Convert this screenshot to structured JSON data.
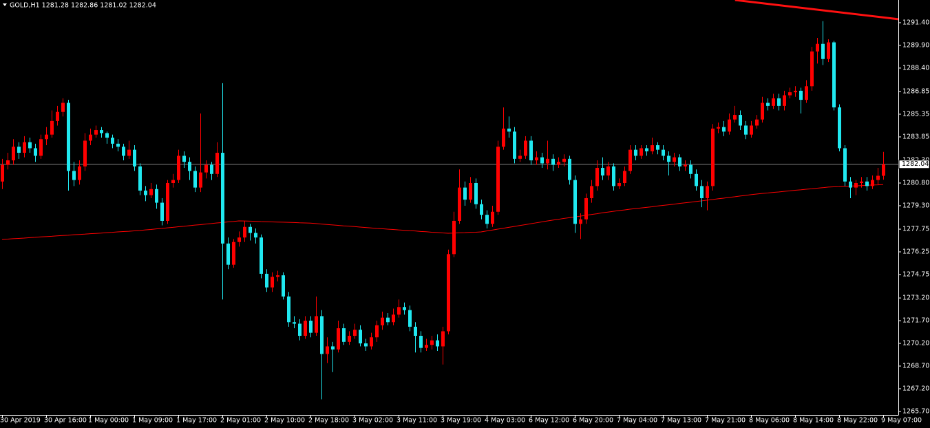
{
  "chart_data": {
    "type": "candlestick",
    "title": "GOLD,H1  1281.28 1282.86 1281.02 1282.04",
    "categories": [
      "30 Apr 2019",
      null,
      null,
      null,
      null,
      null,
      null,
      null,
      "30 Apr 16:00",
      null,
      null,
      null,
      null,
      null,
      null,
      null,
      "1 May 00:00",
      null,
      null,
      null,
      null,
      null,
      null,
      null,
      "1 May 09:00",
      null,
      null,
      null,
      null,
      null,
      null,
      null,
      "1 May 17:00",
      null,
      null,
      null,
      null,
      null,
      null,
      null,
      "2 May 01:00",
      null,
      null,
      null,
      null,
      null,
      null,
      null,
      "2 May 10:00",
      null,
      null,
      null,
      null,
      null,
      null,
      null,
      "2 May 18:00",
      null,
      null,
      null,
      null,
      null,
      null,
      null,
      "3 May 02:00",
      null,
      null,
      null,
      null,
      null,
      null,
      null,
      "3 May 11:00",
      null,
      null,
      null,
      null,
      null,
      null,
      null,
      "3 May 19:00",
      null,
      null,
      null,
      null,
      null,
      null,
      null,
      "4 May 03:00",
      null,
      null,
      null,
      null,
      null,
      null,
      null,
      "6 May 12:00",
      null,
      null,
      null,
      null,
      null,
      null,
      null,
      "6 May 20:00",
      null,
      null,
      null,
      null,
      null,
      null,
      null,
      "7 May 04:00",
      null,
      null,
      null,
      null,
      null,
      null,
      null,
      "7 May 13:00",
      null,
      null,
      null,
      null,
      null,
      null,
      null,
      "7 May 21:00",
      null,
      null,
      null,
      null,
      null,
      null,
      null,
      "8 May 06:00",
      null,
      null,
      null,
      null,
      null,
      null,
      null,
      "8 May 14:00",
      null,
      null,
      null,
      null,
      null,
      null,
      null,
      "8 May 22:00",
      null,
      null,
      null,
      null,
      null,
      null,
      null,
      "9 May 07:00"
    ],
    "open": [
      1280.9,
      1282.0,
      1282.3,
      1283.2,
      1282.8,
      1283.5,
      1283.1,
      1282.6,
      1283.7,
      1284.0,
      1284.9,
      1285.5,
      1286.1,
      1281.6,
      1281.0,
      1281.9,
      1283.6,
      1284.0,
      1284.3,
      1284.1,
      1283.8,
      1283.4,
      1283.2,
      1282.6,
      1283.0,
      1281.9,
      1280.3,
      1280.0,
      1280.4,
      1279.5,
      1278.3,
      1280.8,
      1281.0,
      1282.6,
      1282.2,
      1281.6,
      1280.5,
      1281.5,
      1282.0,
      1281.4,
      1282.8,
      1276.8,
      1275.4,
      1276.9,
      1277.2,
      1277.9,
      1277.5,
      1277.2,
      1274.8,
      1273.9,
      1274.6,
      1274.7,
      1273.3,
      1271.6,
      1271.5,
      1270.7,
      1271.7,
      1270.9,
      1272.0,
      1269.5,
      1270.0,
      1269.8,
      1271.2,
      1270.3,
      1270.7,
      1271.1,
      1270.2,
      1270.0,
      1270.6,
      1271.4,
      1271.9,
      1271.6,
      1272.1,
      1272.6,
      1272.4,
      1271.3,
      1270.7,
      1269.9,
      1270.1,
      1270.4,
      1270.0,
      1271.0,
      1276.1,
      1278.3,
      1280.5,
      1279.7,
      1280.8,
      1279.4,
      1278.7,
      1278.1,
      1278.9,
      1283.2,
      1284.4,
      1284.2,
      1282.4,
      1282.6,
      1283.6,
      1282.3,
      1282.5,
      1282.1,
      1282.4,
      1282.0,
      1282.2,
      1282.4,
      1281.0,
      1278.1,
      1278.4,
      1279.8,
      1280.6,
      1281.8,
      1281.3,
      1281.9,
      1280.6,
      1280.8,
      1281.6,
      1283.0,
      1282.6,
      1283.1,
      1282.9,
      1283.3,
      1283.0,
      1282.6,
      1282.2,
      1282.5,
      1281.9,
      1282.0,
      1281.4,
      1280.6,
      1279.8,
      1280.6,
      1284.4,
      1284.5,
      1284.2,
      1285.0,
      1285.3,
      1284.6,
      1284.0,
      1284.6,
      1285.0,
      1286.1,
      1285.9,
      1286.4,
      1285.9,
      1286.6,
      1286.8,
      1286.9,
      1286.3,
      1287.2,
      1289.5,
      1290.0,
      1289.0,
      1290.1,
      1285.8,
      1283.1,
      1280.9,
      1280.5,
      1280.8,
      1280.9,
      1280.6,
      1281.0,
      1281.28
    ],
    "high": [
      1282.4,
      1282.8,
      1283.7,
      1283.5,
      1283.9,
      1283.8,
      1283.4,
      1284.0,
      1284.5,
      1285.6,
      1285.9,
      1286.4,
      1286.3,
      1282.2,
      1282.3,
      1284.1,
      1284.4,
      1284.6,
      1284.5,
      1284.2,
      1284.0,
      1283.7,
      1283.4,
      1283.6,
      1283.3,
      1282.1,
      1280.6,
      1280.8,
      1280.7,
      1279.8,
      1281.0,
      1281.4,
      1283.0,
      1282.9,
      1282.5,
      1281.9,
      1285.4,
      1282.3,
      1282.2,
      1283.5,
      1287.4,
      1277.2,
      1277.1,
      1277.6,
      1278.3,
      1278.1,
      1277.8,
      1277.4,
      1275.1,
      1274.9,
      1275.0,
      1274.9,
      1273.6,
      1272.0,
      1271.8,
      1272.0,
      1272.0,
      1273.3,
      1272.4,
      1270.6,
      1270.3,
      1271.7,
      1271.5,
      1271.0,
      1271.5,
      1271.4,
      1270.5,
      1270.9,
      1271.7,
      1272.3,
      1272.2,
      1272.5,
      1273.1,
      1272.9,
      1272.7,
      1271.6,
      1271.0,
      1270.5,
      1270.7,
      1270.8,
      1271.3,
      1276.4,
      1278.9,
      1281.7,
      1280.9,
      1281.2,
      1281.1,
      1279.7,
      1279.0,
      1279.3,
      1283.6,
      1285.8,
      1285.2,
      1284.5,
      1283.0,
      1283.9,
      1283.9,
      1282.9,
      1282.8,
      1283.6,
      1282.7,
      1282.5,
      1282.7,
      1282.6,
      1281.3,
      1278.8,
      1280.1,
      1281.0,
      1282.3,
      1282.5,
      1282.2,
      1282.1,
      1281.1,
      1281.9,
      1283.3,
      1283.3,
      1283.3,
      1283.3,
      1283.8,
      1283.5,
      1283.3,
      1282.9,
      1282.8,
      1282.7,
      1282.3,
      1282.3,
      1281.7,
      1281.0,
      1280.9,
      1284.7,
      1284.8,
      1284.9,
      1285.4,
      1285.9,
      1285.6,
      1284.9,
      1284.9,
      1285.3,
      1286.5,
      1286.4,
      1286.7,
      1286.7,
      1286.9,
      1287.1,
      1287.2,
      1287.1,
      1287.6,
      1289.8,
      1290.4,
      1291.5,
      1290.3,
      1290.2,
      1286.0,
      1283.3,
      1281.2,
      1281.0,
      1281.2,
      1281.2,
      1281.3,
      1281.8,
      1282.86
    ],
    "low": [
      1280.4,
      1281.7,
      1282.0,
      1282.4,
      1282.5,
      1282.8,
      1282.2,
      1282.4,
      1283.3,
      1283.8,
      1284.6,
      1285.2,
      1280.3,
      1280.6,
      1280.7,
      1281.6,
      1283.3,
      1283.8,
      1283.8,
      1283.4,
      1283.1,
      1282.9,
      1282.3,
      1282.4,
      1281.6,
      1280.0,
      1279.6,
      1279.8,
      1279.1,
      1278.0,
      1278.1,
      1280.5,
      1280.8,
      1281.8,
      1281.0,
      1280.2,
      1280.2,
      1281.1,
      1281.0,
      1281.2,
      1273.1,
      1275.1,
      1275.2,
      1276.6,
      1276.9,
      1277.0,
      1276.8,
      1274.5,
      1273.6,
      1273.6,
      1274.3,
      1273.1,
      1271.3,
      1271.2,
      1270.4,
      1270.5,
      1270.6,
      1270.7,
      1266.5,
      1268.9,
      1268.3,
      1269.6,
      1270.1,
      1270.1,
      1270.5,
      1270.0,
      1269.7,
      1269.8,
      1270.3,
      1271.1,
      1271.4,
      1271.4,
      1271.9,
      1272.1,
      1271.0,
      1269.6,
      1269.6,
      1269.7,
      1269.8,
      1269.7,
      1268.8,
      1270.8,
      1275.9,
      1278.1,
      1279.3,
      1279.5,
      1279.1,
      1278.4,
      1277.8,
      1277.9,
      1278.7,
      1283.0,
      1283.8,
      1282.1,
      1282.2,
      1282.4,
      1282.0,
      1282.0,
      1281.8,
      1281.7,
      1281.6,
      1281.8,
      1281.9,
      1280.7,
      1277.5,
      1277.1,
      1278.1,
      1279.5,
      1280.3,
      1281.0,
      1281.0,
      1280.3,
      1280.4,
      1280.6,
      1281.4,
      1282.3,
      1282.4,
      1282.6,
      1282.7,
      1282.7,
      1282.3,
      1281.3,
      1281.9,
      1281.6,
      1281.6,
      1281.1,
      1280.3,
      1279.2,
      1279.0,
      1280.3,
      1284.1,
      1283.9,
      1284.0,
      1284.8,
      1284.3,
      1283.7,
      1283.8,
      1284.4,
      1284.8,
      1285.6,
      1285.7,
      1285.6,
      1285.6,
      1286.4,
      1286.5,
      1285.4,
      1286.1,
      1286.9,
      1288.7,
      1288.6,
      1288.8,
      1285.6,
      1282.9,
      1280.6,
      1279.8,
      1280.0,
      1280.5,
      1280.3,
      1280.4,
      1280.7,
      1281.02
    ],
    "close": [
      1282.0,
      1282.3,
      1283.2,
      1282.8,
      1283.5,
      1283.1,
      1282.6,
      1283.7,
      1284.0,
      1284.9,
      1285.5,
      1286.1,
      1281.6,
      1281.0,
      1281.9,
      1283.6,
      1284.0,
      1284.3,
      1284.1,
      1283.8,
      1283.4,
      1283.2,
      1282.6,
      1283.0,
      1281.9,
      1280.3,
      1280.0,
      1280.4,
      1279.5,
      1278.3,
      1280.8,
      1281.0,
      1282.6,
      1282.2,
      1281.6,
      1280.5,
      1281.5,
      1282.0,
      1281.4,
      1282.8,
      1276.8,
      1275.4,
      1276.9,
      1277.2,
      1277.9,
      1277.5,
      1277.2,
      1274.8,
      1273.9,
      1274.6,
      1274.7,
      1273.3,
      1271.6,
      1271.5,
      1270.7,
      1271.7,
      1270.9,
      1272.0,
      1269.5,
      1270.0,
      1269.8,
      1271.2,
      1270.3,
      1270.7,
      1271.1,
      1270.2,
      1270.0,
      1270.6,
      1271.4,
      1271.9,
      1271.6,
      1272.1,
      1272.6,
      1272.4,
      1271.3,
      1270.7,
      1269.9,
      1270.1,
      1270.4,
      1270.0,
      1271.0,
      1276.1,
      1278.3,
      1280.5,
      1279.7,
      1280.8,
      1279.4,
      1278.7,
      1278.1,
      1278.9,
      1283.2,
      1284.4,
      1284.2,
      1282.4,
      1282.6,
      1283.6,
      1282.3,
      1282.5,
      1282.1,
      1282.4,
      1282.0,
      1282.2,
      1282.4,
      1281.0,
      1278.1,
      1278.4,
      1279.8,
      1280.6,
      1281.8,
      1281.3,
      1281.9,
      1280.6,
      1280.8,
      1281.6,
      1283.0,
      1282.6,
      1283.1,
      1282.9,
      1283.3,
      1283.0,
      1282.6,
      1282.2,
      1282.5,
      1281.9,
      1282.0,
      1281.4,
      1280.6,
      1279.8,
      1280.6,
      1284.4,
      1284.5,
      1284.2,
      1285.0,
      1285.3,
      1284.6,
      1284.0,
      1284.6,
      1285.0,
      1286.1,
      1285.9,
      1286.4,
      1285.9,
      1286.6,
      1286.8,
      1286.9,
      1286.3,
      1287.2,
      1289.5,
      1290.0,
      1289.0,
      1290.1,
      1285.8,
      1283.1,
      1280.9,
      1280.5,
      1280.8,
      1280.9,
      1280.6,
      1281.0,
      1281.28,
      1282.04
    ],
    "ma": [
      1277.07,
      1277.09,
      1277.12,
      1277.14,
      1277.16,
      1277.19,
      1277.21,
      1277.24,
      1277.26,
      1277.28,
      1277.31,
      1277.33,
      1277.35,
      1277.38,
      1277.4,
      1277.42,
      1277.45,
      1277.47,
      1277.49,
      1277.52,
      1277.54,
      1277.57,
      1277.59,
      1277.61,
      1277.64,
      1277.66,
      1277.7,
      1277.73,
      1277.77,
      1277.8,
      1277.84,
      1277.87,
      1277.91,
      1277.94,
      1277.98,
      1278.02,
      1278.05,
      1278.09,
      1278.12,
      1278.16,
      1278.19,
      1278.23,
      1278.26,
      1278.3,
      1278.29,
      1278.28,
      1278.27,
      1278.25,
      1278.24,
      1278.23,
      1278.22,
      1278.21,
      1278.2,
      1278.19,
      1278.17,
      1278.16,
      1278.15,
      1278.12,
      1278.09,
      1278.06,
      1278.03,
      1278.0,
      1277.97,
      1277.95,
      1277.92,
      1277.89,
      1277.86,
      1277.83,
      1277.8,
      1277.78,
      1277.75,
      1277.73,
      1277.7,
      1277.68,
      1277.65,
      1277.63,
      1277.6,
      1277.58,
      1277.55,
      1277.53,
      1277.5,
      1277.48,
      1277.49,
      1277.51,
      1277.52,
      1277.54,
      1277.55,
      1277.57,
      1277.63,
      1277.69,
      1277.75,
      1277.81,
      1277.87,
      1277.93,
      1277.99,
      1278.05,
      1278.11,
      1278.17,
      1278.23,
      1278.29,
      1278.35,
      1278.4,
      1278.46,
      1278.51,
      1278.56,
      1278.61,
      1278.67,
      1278.72,
      1278.77,
      1278.83,
      1278.88,
      1278.93,
      1278.98,
      1279.02,
      1279.07,
      1279.11,
      1279.15,
      1279.19,
      1279.23,
      1279.28,
      1279.32,
      1279.36,
      1279.4,
      1279.45,
      1279.49,
      1279.53,
      1279.58,
      1279.62,
      1279.67,
      1279.71,
      1279.76,
      1279.8,
      1279.85,
      1279.89,
      1279.94,
      1279.98,
      1280.03,
      1280.07,
      1280.11,
      1280.14,
      1280.18,
      1280.21,
      1280.25,
      1280.28,
      1280.32,
      1280.35,
      1280.39,
      1280.42,
      1280.46,
      1280.49,
      1280.53,
      1280.55,
      1280.56,
      1280.58,
      1280.6,
      1280.61,
      1280.63,
      1280.65,
      1280.67,
      1280.68,
      1280.7
    ],
    "trendline": {
      "x": [
        133.1,
        162.75
      ],
      "values": [
        1292.9,
        1291.63
      ]
    },
    "up_color": "#ff0000",
    "down_color": "#20e8f0",
    "ma_color": "#ff0000",
    "trendline_color": "#ff1010",
    "price_line_color": "#b4b4b4",
    "grid": false,
    "ylim": [
      1265.47,
      1292.9
    ],
    "yticks": [
      {
        "value": 1291.4,
        "label": "1291.40"
      },
      {
        "value": 1289.9,
        "label": "1289.90"
      },
      {
        "value": 1288.4,
        "label": "1288.40"
      },
      {
        "value": 1286.85,
        "label": "1286.85"
      },
      {
        "value": 1285.35,
        "label": "1285.35"
      },
      {
        "value": 1283.85,
        "label": "1283.85"
      },
      {
        "value": 1282.3,
        "label": "1282.30"
      },
      {
        "value": 1280.8,
        "label": "1280.80"
      },
      {
        "value": 1279.3,
        "label": "1279.30"
      },
      {
        "value": 1277.75,
        "label": "1277.75"
      },
      {
        "value": 1276.25,
        "label": "1276.25"
      },
      {
        "value": 1274.75,
        "label": "1274.75"
      },
      {
        "value": 1273.2,
        "label": "1273.20"
      },
      {
        "value": 1271.7,
        "label": "1271.70"
      },
      {
        "value": 1270.2,
        "label": "1270.20"
      },
      {
        "value": 1268.7,
        "label": "1268.70"
      },
      {
        "value": 1267.2,
        "label": "1267.20"
      },
      {
        "value": 1265.7,
        "label": "1265.70"
      }
    ]
  }
}
